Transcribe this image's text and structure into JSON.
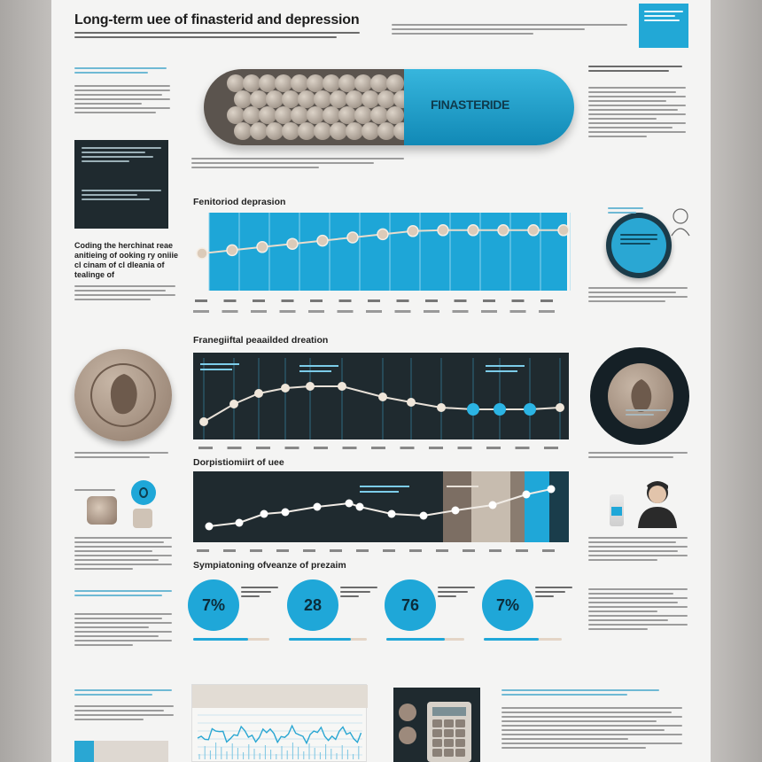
{
  "header": {
    "title": "Long-term uee of finasterid and depression"
  },
  "capsule": {
    "label": "FINASTERIDE"
  },
  "sections": {
    "top_chart_title": "Fenitoriod deprasion",
    "mid_chart_title": "Franegiiftal peaailded dreation",
    "bottom_chart_title": "Dorpistiomiirt of uee",
    "stats_title": "Sympiatoning ofveanze of prezaim",
    "left_heading": "Coding the herchinat reae anitieing of ooking ry oniiie cl cinam of cl dleania of tealinge of"
  },
  "stats": [
    {
      "label": "7%"
    },
    {
      "label": "28"
    },
    {
      "label": "76"
    },
    {
      "label": "7%"
    }
  ],
  "colors": {
    "accent": "#1fa7d8",
    "dark": "#1f2a2f",
    "paper": "#f4f4f3",
    "capsule_brown": "#5b544e"
  },
  "icons": [
    "capsule-icon",
    "coin-icon",
    "face-icon",
    "calculator-icon",
    "person-icon",
    "bottle-icon"
  ]
}
